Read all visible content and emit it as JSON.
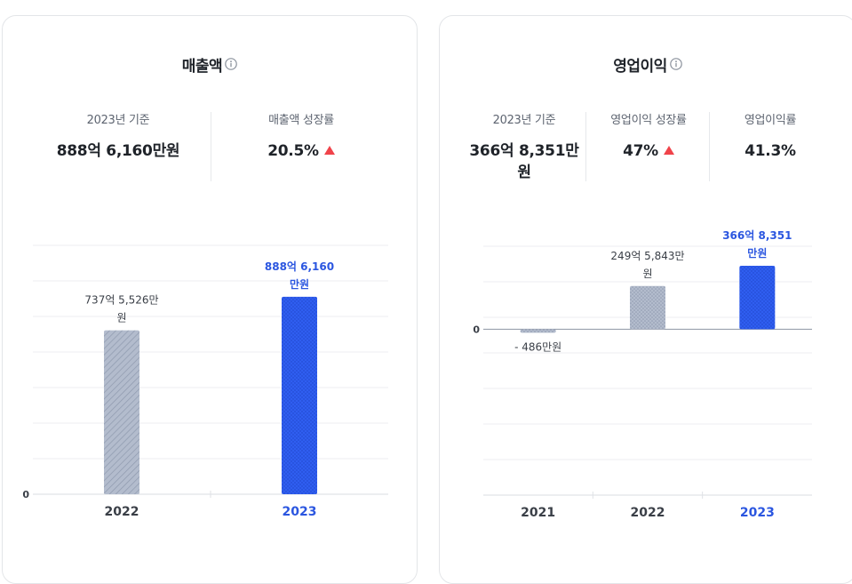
{
  "colors": {
    "accent": "#2f5ef0",
    "accent_text": "#2b56e0",
    "prev_bar": "#b3bccd",
    "up_triangle": "#f0434a",
    "text_dark": "#1f2329",
    "text_muted": "#5d6470"
  },
  "revenue": {
    "title": "매출액",
    "info_icon": "info-circle-icon",
    "stats": [
      {
        "label": "2023년 기준",
        "value": "888억 6,160만원"
      },
      {
        "label": "매출액 성장률",
        "value": "20.5%",
        "trend": "up-triangle-icon"
      }
    ]
  },
  "operating": {
    "title": "영업이익",
    "info_icon": "info-circle-icon",
    "stats": [
      {
        "label": "2023년 기준",
        "value": "366억 8,351만",
        "value2": "원"
      },
      {
        "label": "영업이익 성장률",
        "value": "47%",
        "trend": "up-triangle-icon"
      },
      {
        "label": "영업이익률",
        "value": "41.3%"
      }
    ]
  },
  "chart_data": [
    {
      "type": "bar",
      "title": "매출액",
      "categories": [
        "2022",
        "2023"
      ],
      "values": [
        73755.26,
        88861.6
      ],
      "value_unit": "만원",
      "value_labels": [
        [
          "737억 5,526만",
          "원"
        ],
        [
          "888억 6,160",
          "만원"
        ]
      ],
      "highlight_index": 1,
      "zero_label": "0",
      "ylim": [
        0,
        112000
      ],
      "grid": true
    },
    {
      "type": "bar",
      "title": "영업이익",
      "categories": [
        "2021",
        "2022",
        "2023"
      ],
      "values": [
        -486,
        24958.43,
        36683.51
      ],
      "value_unit": "만원",
      "value_labels": [
        [
          "- 486만원"
        ],
        [
          "249억 5,843만",
          "원"
        ],
        [
          "366억 8,351",
          "만원"
        ]
      ],
      "highlight_index": 2,
      "zero_label": "0",
      "ylim": [
        -96000,
        48000
      ],
      "grid": true
    }
  ]
}
